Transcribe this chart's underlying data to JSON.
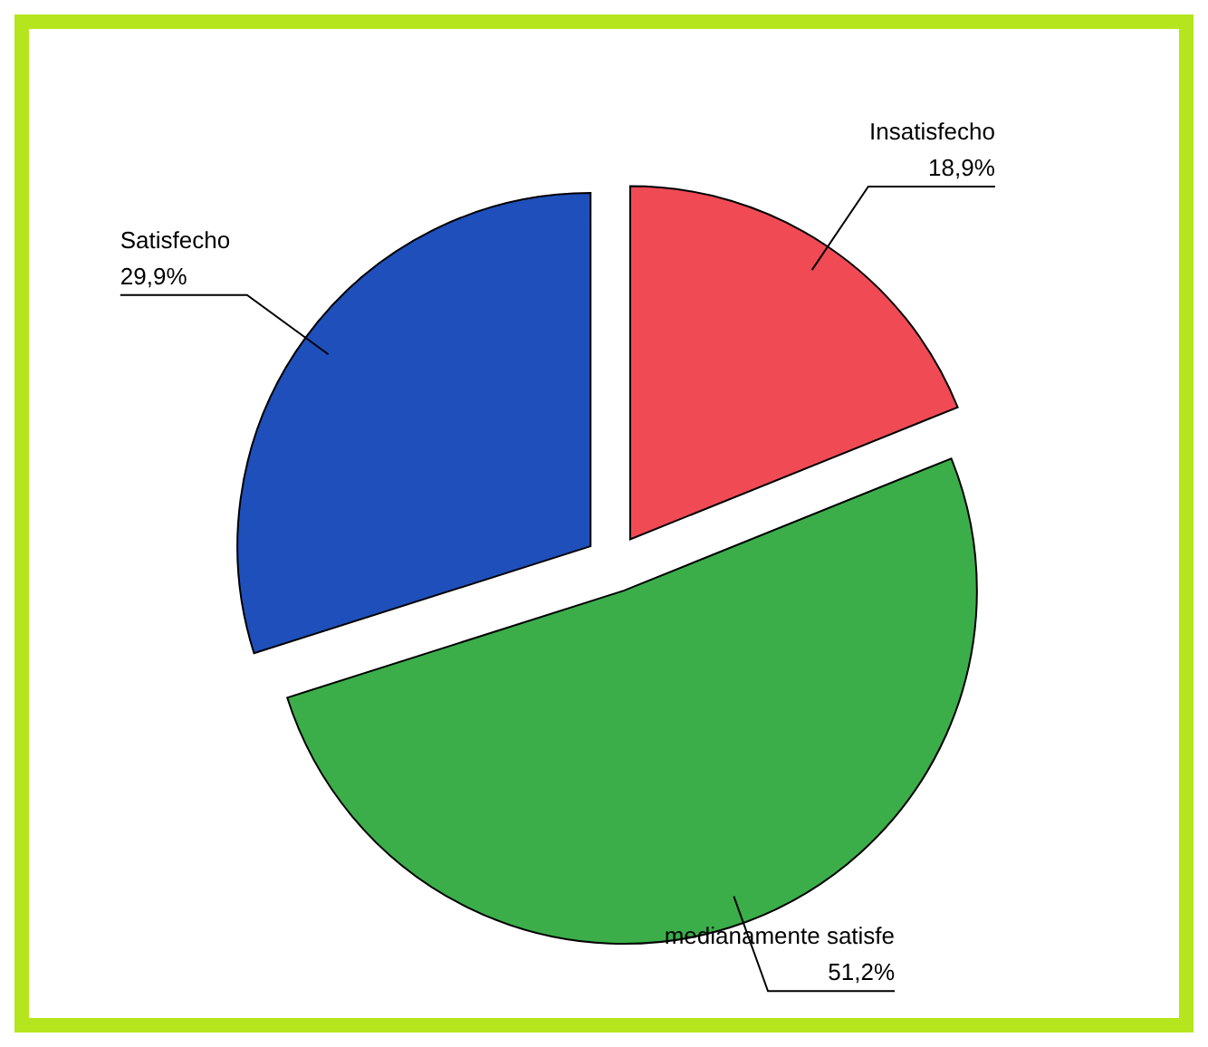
{
  "chart_data": {
    "type": "pie",
    "categories": [
      "Insatisfecho",
      "medianamente satisfe",
      "Satisfecho"
    ],
    "values": [
      18.9,
      51.2,
      29.9
    ],
    "value_labels": [
      "18,9%",
      "51,2%",
      "29,9%"
    ],
    "colors": [
      "#f04a55",
      "#3bae4a",
      "#1f4fba"
    ],
    "legend": false
  }
}
